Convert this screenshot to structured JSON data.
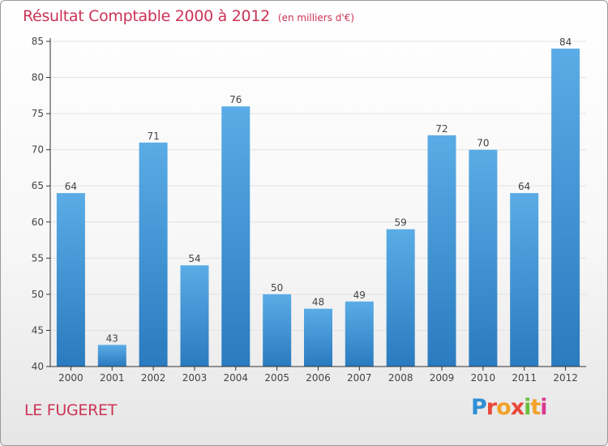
{
  "header": {
    "title": "Résultat Comptable 2000 à 2012",
    "subtitle": "(en milliers d'€)"
  },
  "footer": {
    "commune": "LE FUGERET",
    "logo_text": "Proxiti",
    "logo_letters": [
      "P",
      "r",
      "o",
      "x",
      "i",
      "t",
      "i"
    ]
  },
  "colors": {
    "title": "#cc3355",
    "bar_top": "#5aace6",
    "bar_bottom": "#2a7bbf",
    "axis": "#333333",
    "grid": "#e2e2e2"
  },
  "chart_data": {
    "type": "bar",
    "title": "Résultat Comptable 2000 à 2012",
    "subtitle": "(en milliers d'€)",
    "xlabel": "",
    "ylabel": "",
    "categories": [
      "2000",
      "2001",
      "2002",
      "2003",
      "2004",
      "2005",
      "2006",
      "2007",
      "2008",
      "2009",
      "2010",
      "2011",
      "2012"
    ],
    "values": [
      64,
      43,
      71,
      54,
      76,
      50,
      48,
      49,
      59,
      72,
      70,
      64,
      84
    ],
    "ylim": [
      40,
      85
    ],
    "yticks": [
      40,
      45,
      50,
      55,
      60,
      65,
      70,
      75,
      80,
      85
    ],
    "grid": true,
    "data_labels": true
  }
}
